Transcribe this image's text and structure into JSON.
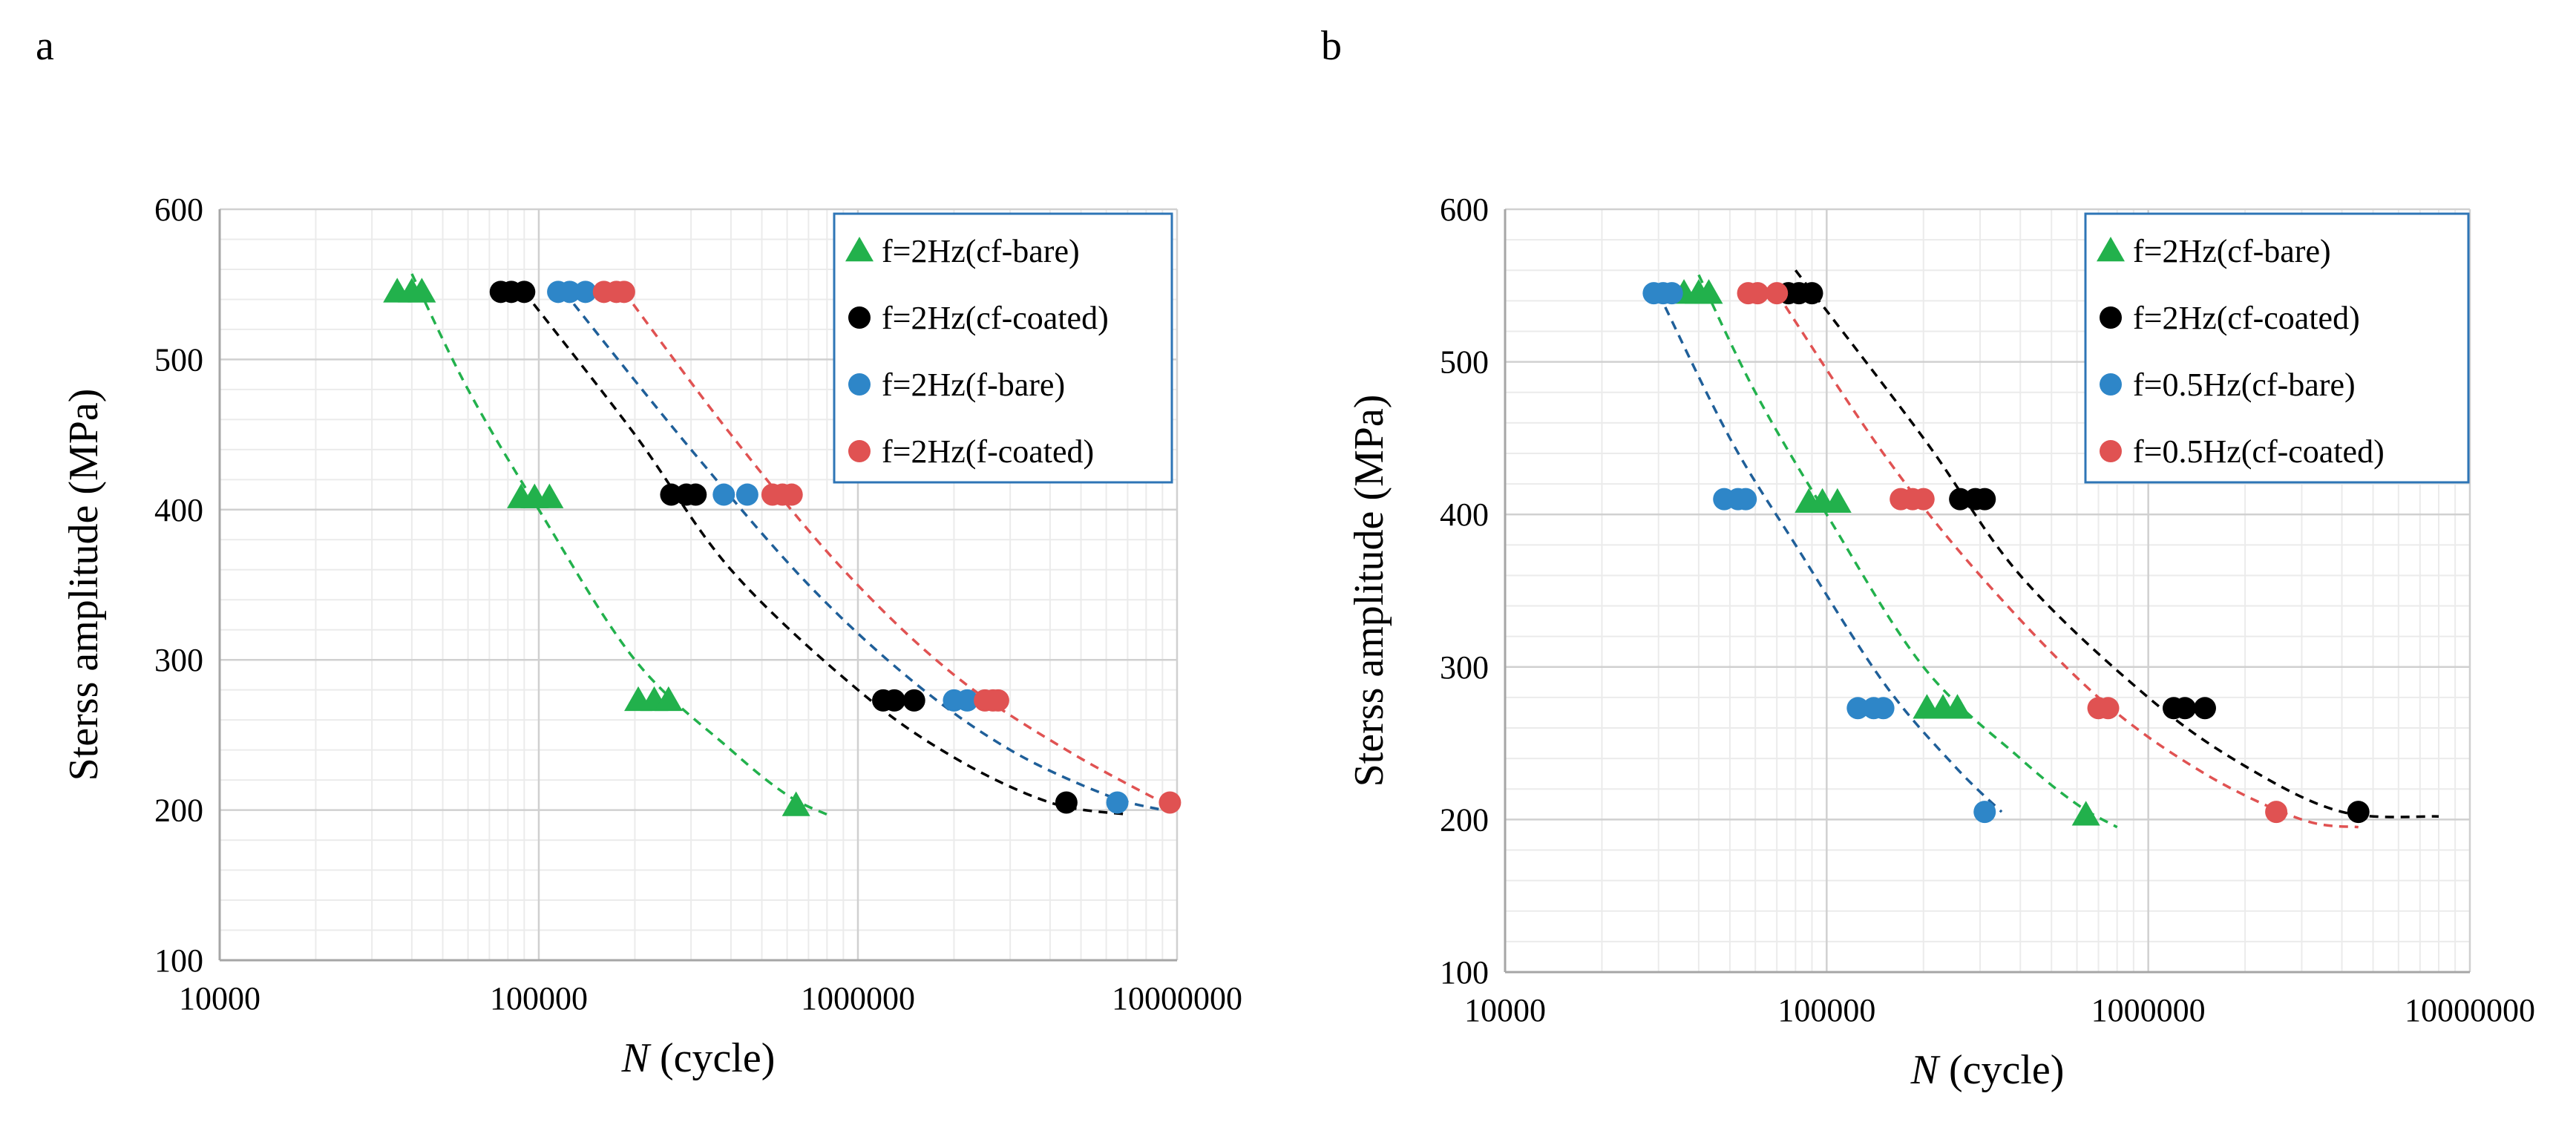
{
  "panels": [
    {
      "letter": "a"
    },
    {
      "letter": "b"
    }
  ],
  "colors": {
    "green": "#22b14c",
    "black": "#000000",
    "blue": "#2e86c8",
    "red": "#e05252",
    "grid_major": "#d0d0d0",
    "grid_minor": "#ebebeb",
    "legend_border": "#2e75b6"
  },
  "chart_data": [
    {
      "type": "scatter",
      "panel": "a",
      "title": "",
      "xlabel_italic": "N",
      "xlabel_rest": " (cycle)",
      "ylabel": "Sterss amplitude  (MPa)",
      "xscale": "log",
      "xlim": [
        10000,
        10000000
      ],
      "ylim": [
        100,
        600
      ],
      "xticks": [
        "10000",
        "100000",
        "1000000",
        "10000000"
      ],
      "yticks": [
        "100",
        "200",
        "300",
        "400",
        "500",
        "600"
      ],
      "grid": true,
      "legend_position": "top-right",
      "series": [
        {
          "name": "f=2Hz(cf-bare)",
          "marker": "triangle",
          "color": "#22b14c",
          "points": [
            [
              36000,
              545
            ],
            [
              40000,
              545
            ],
            [
              43000,
              545
            ],
            [
              88000,
              408
            ],
            [
              97000,
              408
            ],
            [
              108000,
              408
            ],
            [
              205000,
              273
            ],
            [
              230000,
              273
            ],
            [
              255000,
              273
            ],
            [
              640000,
              203
            ]
          ],
          "trend": [
            [
              40000,
              557
            ],
            [
              60000,
              480
            ],
            [
              100000,
              400
            ],
            [
              200000,
              300
            ],
            [
              400000,
              240
            ],
            [
              600000,
              210
            ],
            [
              800000,
              197
            ]
          ]
        },
        {
          "name": "f=2Hz(cf-coated)",
          "marker": "circle",
          "color": "#000000",
          "points": [
            [
              76000,
              545
            ],
            [
              82000,
              545
            ],
            [
              90000,
              545
            ],
            [
              260000,
              410
            ],
            [
              290000,
              410
            ],
            [
              310000,
              410
            ],
            [
              1200000,
              273
            ],
            [
              1300000,
              273
            ],
            [
              1500000,
              273
            ],
            [
              4500000,
              205
            ]
          ],
          "trend": [
            [
              90000,
              545
            ],
            [
              200000,
              450
            ],
            [
              400000,
              360
            ],
            [
              1000000,
              280
            ],
            [
              2000000,
              235
            ],
            [
              4000000,
              205
            ],
            [
              7000000,
              197
            ]
          ]
        },
        {
          "name": "f=2Hz(f-bare)",
          "marker": "circle",
          "color": "#2e86c8",
          "points": [
            [
              115000,
              545
            ],
            [
              125000,
              545
            ],
            [
              140000,
              545
            ],
            [
              380000,
              410
            ],
            [
              450000,
              410
            ],
            [
              2000000,
              273
            ],
            [
              2200000,
              273
            ],
            [
              6500000,
              205
            ]
          ],
          "trend": [
            [
              120000,
              545
            ],
            [
              300000,
              440
            ],
            [
              700000,
              350
            ],
            [
              1500000,
              285
            ],
            [
              3000000,
              240
            ],
            [
              6000000,
              210
            ],
            [
              9000000,
              200
            ]
          ]
        },
        {
          "name": "f=2Hz(f-coated)",
          "marker": "circle",
          "color": "#e05252",
          "points": [
            [
              160000,
              545
            ],
            [
              175000,
              545
            ],
            [
              185000,
              545
            ],
            [
              540000,
              410
            ],
            [
              580000,
              410
            ],
            [
              620000,
              410
            ],
            [
              2500000,
              273
            ],
            [
              2650000,
              273
            ],
            [
              2750000,
              273
            ],
            [
              9500000,
              205
            ]
          ],
          "trend": [
            [
              185000,
              545
            ],
            [
              400000,
              450
            ],
            [
              900000,
              360
            ],
            [
              2000000,
              290
            ],
            [
              4500000,
              240
            ],
            [
              10000000,
              200
            ]
          ]
        }
      ],
      "legend_entries": [
        "f=2Hz(cf-bare)",
        "f=2Hz(cf-coated)",
        "f=2Hz(f-bare)",
        "f=2Hz(f-coated)"
      ]
    },
    {
      "type": "scatter",
      "panel": "b",
      "title": "",
      "xlabel_italic": "N",
      "xlabel_rest": " (cycle)",
      "ylabel": "Sterss amplitude  (MPa)",
      "xscale": "log",
      "xlim": [
        10000,
        10000000
      ],
      "ylim": [
        100,
        600
      ],
      "xticks": [
        "10000",
        "100000",
        "1000000",
        "10000000"
      ],
      "yticks": [
        "100",
        "200",
        "300",
        "400",
        "500",
        "600"
      ],
      "grid": true,
      "legend_position": "top-right",
      "series": [
        {
          "name": "f=2Hz(cf-bare)",
          "marker": "triangle",
          "color": "#22b14c",
          "points": [
            [
              36000,
              545
            ],
            [
              40000,
              545
            ],
            [
              43000,
              545
            ],
            [
              88000,
              408
            ],
            [
              97000,
              408
            ],
            [
              108000,
              408
            ],
            [
              205000,
              273
            ],
            [
              230000,
              273
            ],
            [
              255000,
              273
            ],
            [
              640000,
              203
            ]
          ],
          "trend": [
            [
              40000,
              557
            ],
            [
              60000,
              480
            ],
            [
              100000,
              400
            ],
            [
              200000,
              300
            ],
            [
              400000,
              240
            ],
            [
              600000,
              210
            ],
            [
              800000,
              195
            ]
          ]
        },
        {
          "name": "f=2Hz(cf-coated)",
          "marker": "circle",
          "color": "#000000",
          "points": [
            [
              76000,
              545
            ],
            [
              82000,
              545
            ],
            [
              90000,
              545
            ],
            [
              260000,
              410
            ],
            [
              290000,
              410
            ],
            [
              310000,
              410
            ],
            [
              1200000,
              273
            ],
            [
              1300000,
              273
            ],
            [
              1500000,
              273
            ],
            [
              4500000,
              205
            ]
          ],
          "trend": [
            [
              80000,
              560
            ],
            [
              200000,
              450
            ],
            [
              400000,
              360
            ],
            [
              1000000,
              280
            ],
            [
              2000000,
              235
            ],
            [
              4000000,
              205
            ],
            [
              8000000,
              202
            ]
          ]
        },
        {
          "name": "f=0.5Hz(cf-bare)",
          "marker": "circle",
          "color": "#2e86c8",
          "points": [
            [
              29000,
              545
            ],
            [
              31000,
              545
            ],
            [
              33000,
              545
            ],
            [
              48000,
              410
            ],
            [
              53000,
              410
            ],
            [
              56000,
              410
            ],
            [
              125000,
              273
            ],
            [
              140000,
              273
            ],
            [
              150000,
              273
            ],
            [
              310000,
              205
            ]
          ],
          "trend": [
            [
              30000,
              545
            ],
            [
              50000,
              450
            ],
            [
              80000,
              380
            ],
            [
              150000,
              290
            ],
            [
              250000,
              235
            ],
            [
              350000,
              205
            ]
          ]
        },
        {
          "name": "f=0.5Hz(cf-coated)",
          "marker": "circle",
          "color": "#e05252",
          "points": [
            [
              57000,
              545
            ],
            [
              61000,
              545
            ],
            [
              70000,
              545
            ],
            [
              170000,
              410
            ],
            [
              185000,
              410
            ],
            [
              200000,
              410
            ],
            [
              700000,
              273
            ],
            [
              750000,
              273
            ],
            [
              2500000,
              205
            ]
          ],
          "trend": [
            [
              70000,
              545
            ],
            [
              150000,
              440
            ],
            [
              300000,
              360
            ],
            [
              700000,
              280
            ],
            [
              1500000,
              230
            ],
            [
              3000000,
              200
            ],
            [
              4500000,
              195
            ]
          ]
        }
      ],
      "legend_entries": [
        "f=2Hz(cf-bare)",
        "f=2Hz(cf-coated)",
        "f=0.5Hz(cf-bare)",
        "f=0.5Hz(cf-coated)"
      ]
    }
  ]
}
